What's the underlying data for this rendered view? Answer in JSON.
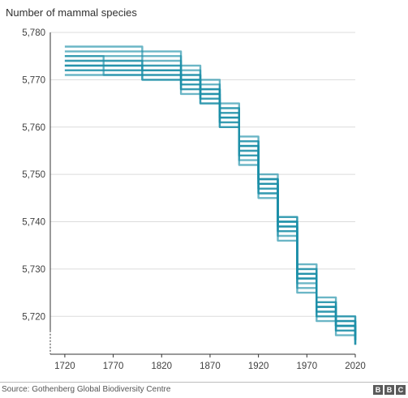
{
  "chart_data": {
    "type": "line",
    "title": "",
    "xlabel": "",
    "ylabel": "Number of mammal species",
    "xlim": [
      1705,
      2020
    ],
    "ylim": [
      5712,
      5780
    ],
    "x_ticks": [
      1720,
      1770,
      1820,
      1870,
      1920,
      1970,
      2020
    ],
    "y_ticks": [
      5720,
      5730,
      5740,
      5750,
      5760,
      5770,
      5780
    ],
    "x_tick_labels": [
      "1720",
      "1770",
      "1820",
      "1870",
      "1920",
      "1970",
      "2020"
    ],
    "y_tick_labels": [
      "5,720",
      "5,730",
      "5,740",
      "5,750",
      "5,760",
      "5,770",
      "5,780"
    ],
    "grid": "horizontal",
    "line_color": "#1b8fa8",
    "series": [
      {
        "x": [
          1720,
          1760,
          1800,
          1840,
          1860,
          1880,
          1900,
          1920,
          1940,
          1960,
          1980,
          2000,
          2020
        ],
        "values": [
          5777,
          5777,
          5776,
          5773,
          5770,
          5765,
          5758,
          5749,
          5740,
          5728,
          5722,
          5720,
          5718
        ]
      },
      {
        "x": [
          1720,
          1760,
          1800,
          1840,
          1860,
          1880,
          1900,
          1920,
          1940,
          1960,
          1980,
          2000,
          2020
        ],
        "values": [
          5776,
          5776,
          5775,
          5772,
          5768,
          5763,
          5756,
          5748,
          5740,
          5729,
          5722,
          5719,
          5717
        ]
      },
      {
        "x": [
          1720,
          1760,
          1800,
          1840,
          1860,
          1880,
          1900,
          1920,
          1940,
          1960,
          1980,
          2000,
          2020
        ],
        "values": [
          5775,
          5775,
          5774,
          5771,
          5769,
          5764,
          5757,
          5750,
          5741,
          5730,
          5723,
          5720,
          5716
        ]
      },
      {
        "x": [
          1720,
          1760,
          1800,
          1840,
          1860,
          1880,
          1900,
          1920,
          1940,
          1960,
          1980,
          2000,
          2020
        ],
        "values": [
          5774,
          5774,
          5773,
          5770,
          5767,
          5762,
          5755,
          5747,
          5739,
          5728,
          5721,
          5718,
          5716
        ]
      },
      {
        "x": [
          1720,
          1760,
          1800,
          1840,
          1860,
          1880,
          1900,
          1920,
          1940,
          1960,
          1980,
          2000,
          2020
        ],
        "values": [
          5774,
          5773,
          5772,
          5770,
          5768,
          5763,
          5757,
          5749,
          5741,
          5731,
          5724,
          5719,
          5715
        ]
      },
      {
        "x": [
          1720,
          1760,
          1800,
          1840,
          1860,
          1880,
          1900,
          1920,
          1940,
          1960,
          1980,
          2000,
          2020
        ],
        "values": [
          5773,
          5773,
          5772,
          5769,
          5766,
          5761,
          5754,
          5746,
          5738,
          5727,
          5720,
          5717,
          5715
        ]
      },
      {
        "x": [
          1720,
          1760,
          1800,
          1840,
          1860,
          1880,
          1900,
          1920,
          1940,
          1960,
          1980,
          2000,
          2020
        ],
        "values": [
          5773,
          5772,
          5771,
          5769,
          5767,
          5762,
          5755,
          5748,
          5739,
          5729,
          5722,
          5718,
          5714
        ]
      },
      {
        "x": [
          1720,
          1760,
          1800,
          1840,
          1860,
          1880,
          1900,
          1920,
          1940,
          1960,
          1980,
          2000,
          2020
        ],
        "values": [
          5772,
          5772,
          5771,
          5768,
          5766,
          5760,
          5753,
          5746,
          5737,
          5726,
          5720,
          5717,
          5714
        ]
      },
      {
        "x": [
          1720,
          1760,
          1800,
          1840,
          1860,
          1880,
          1900,
          1920,
          1940,
          1960,
          1980,
          2000,
          2020
        ],
        "values": [
          5772,
          5771,
          5770,
          5768,
          5765,
          5761,
          5754,
          5747,
          5738,
          5728,
          5721,
          5718,
          5715
        ]
      },
      {
        "x": [
          1720,
          1760,
          1800,
          1840,
          1860,
          1880,
          1900,
          1920,
          1940,
          1960,
          1980,
          2000,
          2020
        ],
        "values": [
          5771,
          5771,
          5770,
          5767,
          5765,
          5760,
          5752,
          5745,
          5736,
          5725,
          5719,
          5716,
          5714
        ]
      },
      {
        "x": [
          1720,
          1760,
          1800,
          1840,
          1860,
          1880,
          1900,
          1920,
          1940,
          1960,
          1980,
          2000,
          2020
        ],
        "values": [
          5775,
          5774,
          5773,
          5771,
          5768,
          5764,
          5756,
          5749,
          5739,
          5729,
          5723,
          5719,
          5716
        ]
      },
      {
        "x": [
          1720,
          1760,
          1800,
          1840,
          1860,
          1880,
          1900,
          1920,
          1940,
          1960,
          1980,
          2000,
          2020
        ],
        "values": [
          5773,
          5773,
          5772,
          5770,
          5767,
          5762,
          5756,
          5748,
          5740,
          5730,
          5722,
          5718,
          5715
        ]
      }
    ]
  },
  "footer": {
    "source": "Source: Gothenberg Global Biodiversity Centre",
    "logo_letters": [
      "B",
      "B",
      "C"
    ]
  }
}
